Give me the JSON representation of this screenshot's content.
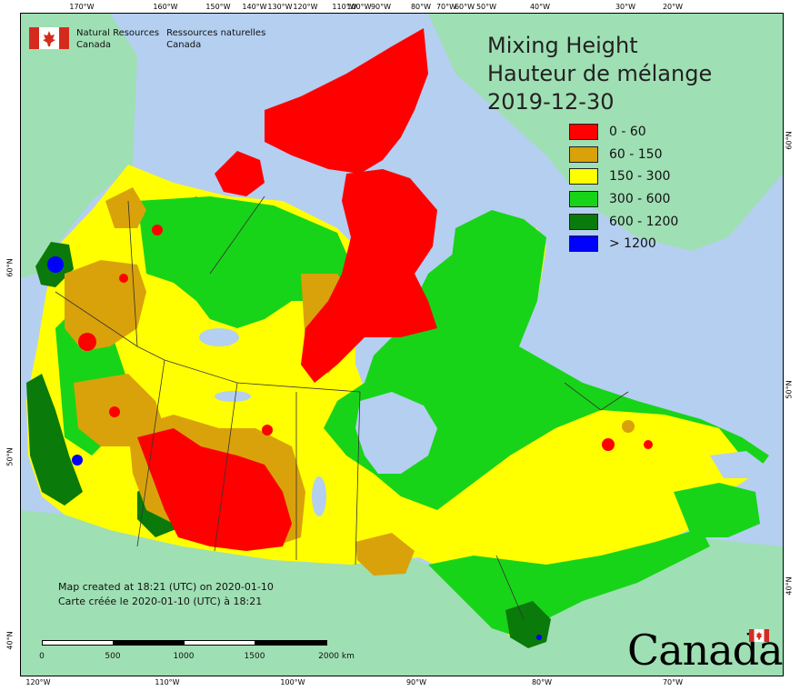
{
  "agency": {
    "en_line1": "Natural Resources",
    "en_line2": "Canada",
    "fr_line1": "Ressources naturelles",
    "fr_line2": "Canada",
    "flag_red": "#d52b1e"
  },
  "title": {
    "line1": "Mixing Height",
    "line2": "Hauteur de mélange",
    "date": "2019-12-30"
  },
  "legend": [
    {
      "label": "0 - 60",
      "color": "#ff0000"
    },
    {
      "label": "60 - 150",
      "color": "#d9a20a"
    },
    {
      "label": "150 - 300",
      "color": "#ffff00"
    },
    {
      "label": "300 - 600",
      "color": "#18d418"
    },
    {
      "label": "600 - 1200",
      "color": "#0a7a0a"
    },
    {
      "label": "> 1200",
      "color": "#0000ff"
    }
  ],
  "graticule": {
    "top_labels": [
      "170°W",
      "160°W",
      "150°W",
      "140°W",
      "130°W",
      "120°W",
      "110°W",
      "100°W",
      "90°W",
      "80°W",
      "70°W",
      "60°W",
      "50°W",
      "40°W",
      "30°W",
      "20°W"
    ],
    "bottom_labels": [
      "120°W",
      "110°W",
      "100°W",
      "90°W",
      "80°W",
      "70°W"
    ],
    "left_labels": [
      "60°N",
      "50°N",
      "40°N"
    ],
    "right_labels": [
      "60°N",
      "50°N",
      "40°N"
    ]
  },
  "credits": {
    "line1": "Map created at 18:21 (UTC) on 2020-01-10",
    "line2": "Carte créée le 2020-01-10 (UTC) à 18:21"
  },
  "scale": {
    "labels": [
      "0",
      "500",
      "1000",
      "1500",
      "2000 km"
    ]
  },
  "wordmark": "Canada",
  "colors": {
    "ocean": "#b4cff0",
    "land_outside": "#9fdfb4",
    "boundary": "#333333",
    "lake": "#b4cff0"
  }
}
